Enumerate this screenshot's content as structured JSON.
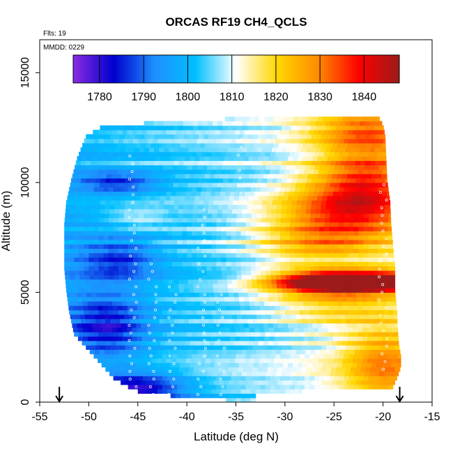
{
  "chart_data": {
    "type": "heatmap",
    "title": "ORCAS RF19 CH4_QCLS",
    "annotations": {
      "flights": "Flts: 19",
      "date": "MMDD: 0229"
    },
    "xlabel": "Latitude (deg N)",
    "ylabel": "Altitude (m)",
    "xlim": [
      -55,
      -15
    ],
    "ylim": [
      0,
      16500
    ],
    "xticks": [
      -55,
      -50,
      -45,
      -40,
      -35,
      -30,
      -25,
      -20,
      -15
    ],
    "yticks": [
      0,
      5000,
      10000,
      15000
    ],
    "colorbar": {
      "range": [
        1774,
        1848
      ],
      "ticks": [
        1780,
        1790,
        1800,
        1810,
        1820,
        1830,
        1840
      ],
      "colors": [
        "#8a2be2",
        "#0000cd",
        "#1e90ff",
        "#00bfff",
        "#ffffff",
        "#ffd700",
        "#ff8c00",
        "#ff0000",
        "#9b1b1b"
      ]
    },
    "arrows_lat": [
      -53,
      -18.3
    ],
    "coverage": {
      "altitudes": [
        0,
        300,
        600,
        1000,
        1500,
        2000,
        2500,
        3000,
        4000,
        5000,
        6000,
        7000,
        8000,
        9000,
        10000,
        11000,
        12000,
        12500,
        12900
      ],
      "lat_min": [
        -36,
        -44.5,
        -46,
        -47.5,
        -48.5,
        -49.5,
        -50.5,
        -51.5,
        -52,
        -52.3,
        -52.5,
        -52.5,
        -52.5,
        -52.3,
        -51.8,
        -51.2,
        -50.3,
        -48.5,
        -32
      ],
      "lat_max": [
        -33,
        -33,
        -19,
        -18.6,
        -18.2,
        -18.2,
        -18.4,
        -18.5,
        -18.6,
        -18.8,
        -18.8,
        -19,
        -19.2,
        -19.3,
        -19.6,
        -19.7,
        -19.8,
        -20,
        -20.5
      ]
    },
    "features": [
      {
        "lat": -20,
        "alt": 5500,
        "value": 1848,
        "lat_width": 9,
        "alt_width": 450
      },
      {
        "lat": -26,
        "alt": 5500,
        "value": 1830,
        "lat_width": 6,
        "alt_width": 550
      },
      {
        "lat": -24,
        "alt": 8600,
        "value": 1826,
        "lat_width": 7,
        "alt_width": 1300
      },
      {
        "lat": -22,
        "alt": 10300,
        "value": 1824,
        "lat_width": 5,
        "alt_width": 1500
      },
      {
        "lat": -22,
        "alt": 12400,
        "value": 1818,
        "lat_width": 5,
        "alt_width": 900
      },
      {
        "lat": -20,
        "alt": 1700,
        "value": 1818,
        "lat_width": 4,
        "alt_width": 1800
      },
      {
        "lat": -25,
        "alt": 4500,
        "value": 1812,
        "lat_width": 6,
        "alt_width": 1000
      },
      {
        "lat": -27,
        "alt": 7200,
        "value": 1814,
        "lat_width": 6,
        "alt_width": 900
      },
      {
        "lat": -45,
        "alt": 8400,
        "value": 1808,
        "lat_width": 3,
        "alt_width": 500
      },
      {
        "lat": -45,
        "alt": 600,
        "value": 1776,
        "lat_width": 5,
        "alt_width": 800
      },
      {
        "lat": -48,
        "alt": 3500,
        "value": 1782,
        "lat_width": 4,
        "alt_width": 1500
      },
      {
        "lat": -47,
        "alt": 6500,
        "value": 1785,
        "lat_width": 4,
        "alt_width": 1000
      },
      {
        "lat": -47,
        "alt": 10000,
        "value": 1784,
        "lat_width": 4,
        "alt_width": 500
      }
    ]
  }
}
